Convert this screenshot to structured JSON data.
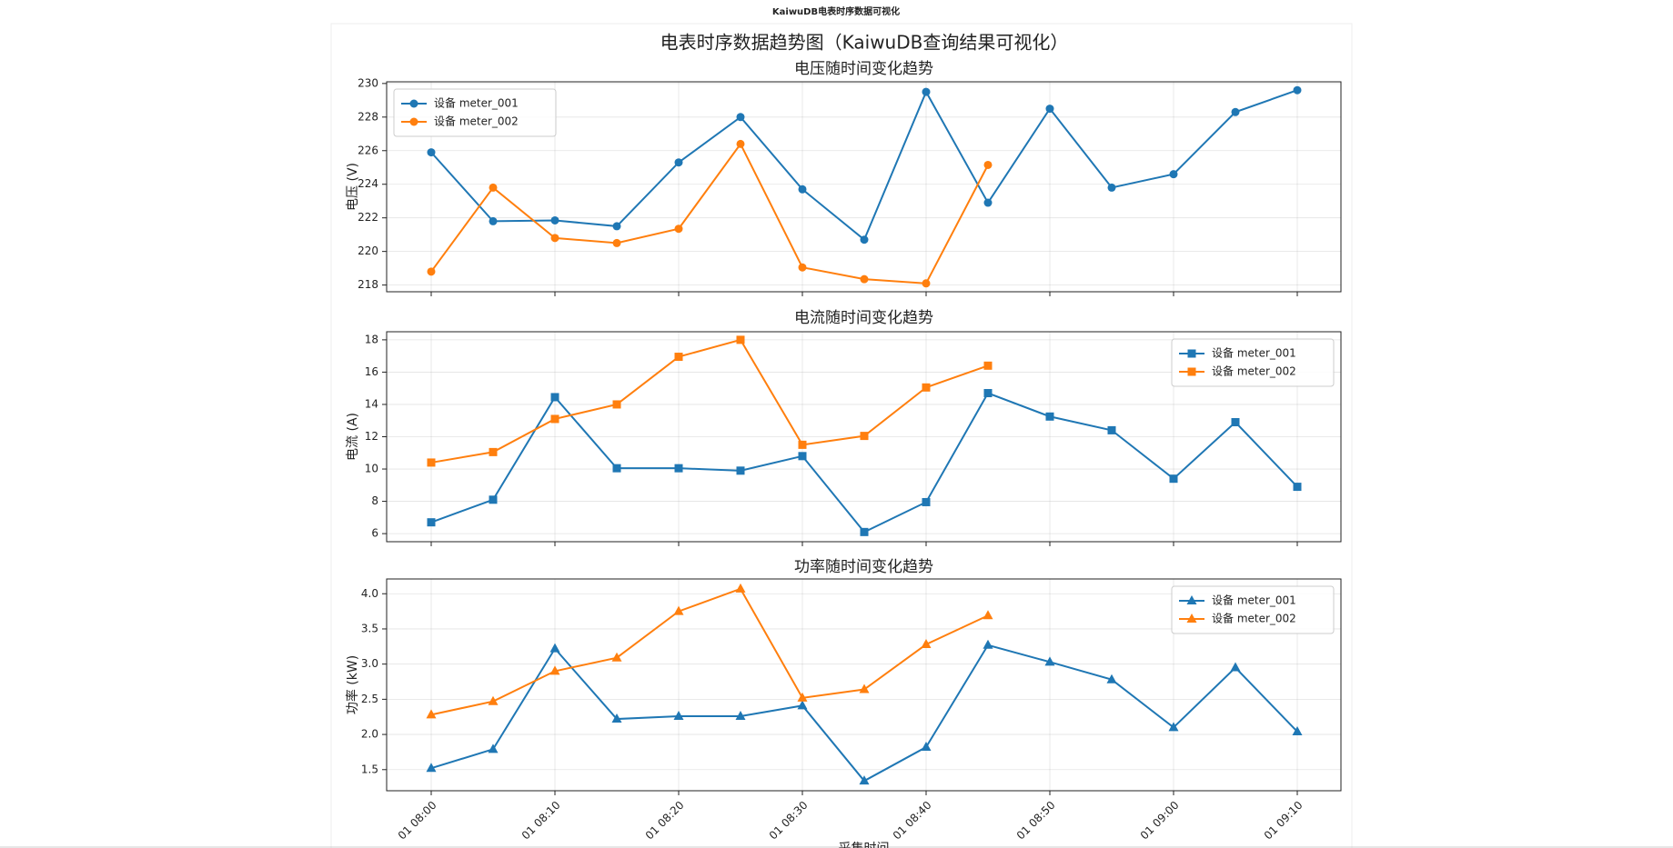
{
  "page_title": "KaiwuDB电表时序数据可视化",
  "figure_title": "电表时序数据趋势图（KaiwuDB查询结果可视化）",
  "chart_data": [
    {
      "type": "line",
      "title": "电压随时间变化趋势",
      "y_label": "电压 (V)",
      "marker": "circle",
      "legend": "upper left",
      "grid": true,
      "x": [
        "01 08:00",
        "01 08:05",
        "01 08:10",
        "01 08:15",
        "01 08:20",
        "01 08:25",
        "01 08:30",
        "01 08:35",
        "01 08:40",
        "01 08:45",
        "01 08:50",
        "01 08:55",
        "01 09:00",
        "01 09:05",
        "01 09:10"
      ],
      "ylim": [
        217.6,
        230.1
      ],
      "yticks": [
        218,
        220,
        222,
        224,
        226,
        228,
        230
      ],
      "series": [
        {
          "name": "设备 meter_001",
          "color": "#1f77b4",
          "values": [
            225.9,
            221.8,
            221.85,
            221.5,
            225.3,
            228.0,
            223.7,
            220.7,
            229.5,
            222.9,
            228.5,
            223.8,
            224.6,
            228.3,
            229.6
          ]
        },
        {
          "name": "设备 meter_002",
          "color": "#ff7f0e",
          "values": [
            218.8,
            223.8,
            220.8,
            220.5,
            221.35,
            226.4,
            219.05,
            218.35,
            218.1,
            225.15,
            null,
            null,
            null,
            null,
            null
          ]
        }
      ]
    },
    {
      "type": "line",
      "title": "电流随时间变化趋势",
      "y_label": "电流 (A)",
      "marker": "square",
      "legend": "upper right",
      "grid": true,
      "x": [
        "01 08:00",
        "01 08:05",
        "01 08:10",
        "01 08:15",
        "01 08:20",
        "01 08:25",
        "01 08:30",
        "01 08:35",
        "01 08:40",
        "01 08:45",
        "01 08:50",
        "01 08:55",
        "01 09:00",
        "01 09:05",
        "01 09:10"
      ],
      "ylim": [
        5.5,
        18.5
      ],
      "yticks": [
        6,
        8,
        10,
        12,
        14,
        16,
        18
      ],
      "series": [
        {
          "name": "设备 meter_001",
          "color": "#1f77b4",
          "values": [
            6.7,
            8.1,
            14.45,
            10.05,
            10.05,
            9.9,
            10.8,
            6.1,
            7.95,
            14.7,
            13.25,
            12.4,
            9.4,
            12.9,
            8.9
          ]
        },
        {
          "name": "设备 meter_002",
          "color": "#ff7f0e",
          "values": [
            10.4,
            11.05,
            13.1,
            14.0,
            16.95,
            18.0,
            11.5,
            12.05,
            15.05,
            16.4,
            null,
            null,
            null,
            null,
            null
          ]
        }
      ]
    },
    {
      "type": "line",
      "title": "功率随时间变化趋势",
      "y_label": "功率 (kW)",
      "x_label": "采集时间",
      "marker": "triangle",
      "legend": "upper right",
      "grid": true,
      "x": [
        "01 08:00",
        "01 08:05",
        "01 08:10",
        "01 08:15",
        "01 08:20",
        "01 08:25",
        "01 08:30",
        "01 08:35",
        "01 08:40",
        "01 08:45",
        "01 08:50",
        "01 08:55",
        "01 09:00",
        "01 09:05",
        "01 09:10"
      ],
      "xticks": [
        "01 08:00",
        "01 08:10",
        "01 08:20",
        "01 08:30",
        "01 08:40",
        "01 08:50",
        "01 09:00",
        "01 09:10"
      ],
      "ylim": [
        1.2,
        4.21
      ],
      "yticks": [
        1.5,
        {
          "value": 2,
          "label": "2.0"
        },
        2.5,
        {
          "value": 3,
          "label": "3.0"
        },
        3.5,
        {
          "value": 4,
          "label": "4.0"
        }
      ],
      "series": [
        {
          "name": "设备 meter_001",
          "color": "#1f77b4",
          "values": [
            1.52,
            1.79,
            3.22,
            2.22,
            2.26,
            2.26,
            2.41,
            1.34,
            1.82,
            3.27,
            3.03,
            2.78,
            2.1,
            2.95,
            2.04
          ]
        },
        {
          "name": "设备 meter_002",
          "color": "#ff7f0e",
          "values": [
            2.28,
            2.47,
            2.9,
            3.09,
            3.75,
            4.07,
            2.52,
            2.64,
            3.28,
            3.69,
            null,
            null,
            null,
            null,
            null
          ]
        }
      ]
    }
  ]
}
